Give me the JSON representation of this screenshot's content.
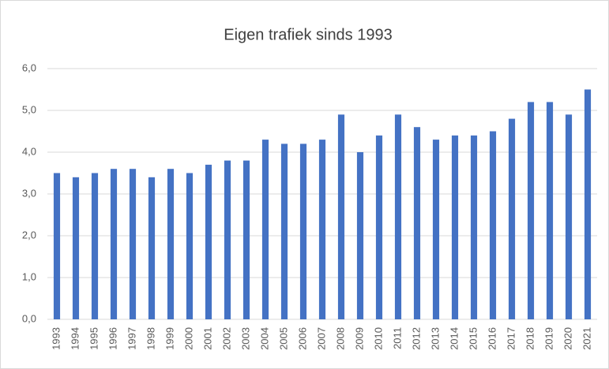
{
  "chart_data": {
    "type": "bar",
    "title": "Eigen trafiek sinds 1993",
    "categories": [
      "1993",
      "1994",
      "1995",
      "1996",
      "1997",
      "1998",
      "1999",
      "2000",
      "2001",
      "2002",
      "2003",
      "2004",
      "2005",
      "2006",
      "2007",
      "2008",
      "2009",
      "2010",
      "2011",
      "2012",
      "2013",
      "2014",
      "2015",
      "2016",
      "2017",
      "2018",
      "2019",
      "2020",
      "2021"
    ],
    "values": [
      3.5,
      3.4,
      3.5,
      3.6,
      3.6,
      3.4,
      3.6,
      3.5,
      3.7,
      3.8,
      3.8,
      4.3,
      4.2,
      4.2,
      4.3,
      4.9,
      4.0,
      4.4,
      4.9,
      4.6,
      4.3,
      4.4,
      4.4,
      4.5,
      4.8,
      5.2,
      5.2,
      4.9,
      5.5
    ],
    "color": "#4472c4",
    "ylim": [
      0,
      6
    ],
    "yticks": [
      {
        "value": 0,
        "label": "0,0"
      },
      {
        "value": 1,
        "label": "1,0"
      },
      {
        "value": 2,
        "label": "2,0"
      },
      {
        "value": 3,
        "label": "3,0"
      },
      {
        "value": 4,
        "label": "4,0"
      },
      {
        "value": 5,
        "label": "5,0"
      },
      {
        "value": 6,
        "label": "6,0"
      }
    ],
    "grid": true
  }
}
